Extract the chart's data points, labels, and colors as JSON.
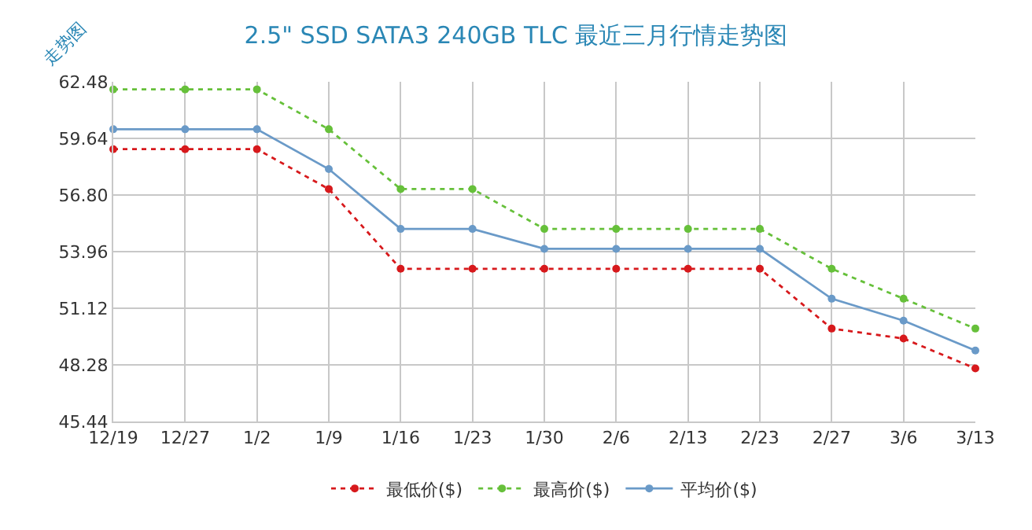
{
  "chart_data": {
    "type": "line",
    "title": "2.5\" SSD SATA3 240GB TLC 最近三月行情走势图",
    "annotations": [
      "走势图"
    ],
    "categories": [
      "12/19",
      "12/27",
      "1/2",
      "1/9",
      "1/16",
      "1/23",
      "1/30",
      "2/6",
      "2/13",
      "2/23",
      "2/27",
      "3/6",
      "3/13"
    ],
    "series": [
      {
        "name": "最低价($)",
        "color": "#d7191c",
        "line_style": "dotted",
        "values": [
          59.1,
          59.1,
          59.1,
          57.1,
          53.1,
          53.1,
          53.1,
          53.1,
          53.1,
          53.1,
          50.1,
          49.6,
          48.1
        ]
      },
      {
        "name": "最高价($)",
        "color": "#66c03a",
        "line_style": "dotted",
        "values": [
          62.1,
          62.1,
          62.1,
          60.1,
          57.1,
          57.1,
          55.1,
          55.1,
          55.1,
          55.1,
          53.1,
          51.6,
          50.1
        ]
      },
      {
        "name": "平均价($)",
        "color": "#6a9ac8",
        "line_style": "solid",
        "values": [
          60.1,
          60.1,
          60.1,
          58.1,
          55.1,
          55.1,
          54.1,
          54.1,
          54.1,
          54.1,
          51.6,
          50.5,
          49.0
        ]
      }
    ],
    "ylim": [
      45.44,
      62.48
    ],
    "yticks": [
      45.44,
      48.28,
      51.12,
      53.96,
      {
        "value": 56.8,
        "label": "56.80"
      },
      59.64,
      62.48
    ],
    "grid": true,
    "legend": "bottom",
    "marker": "circle"
  }
}
